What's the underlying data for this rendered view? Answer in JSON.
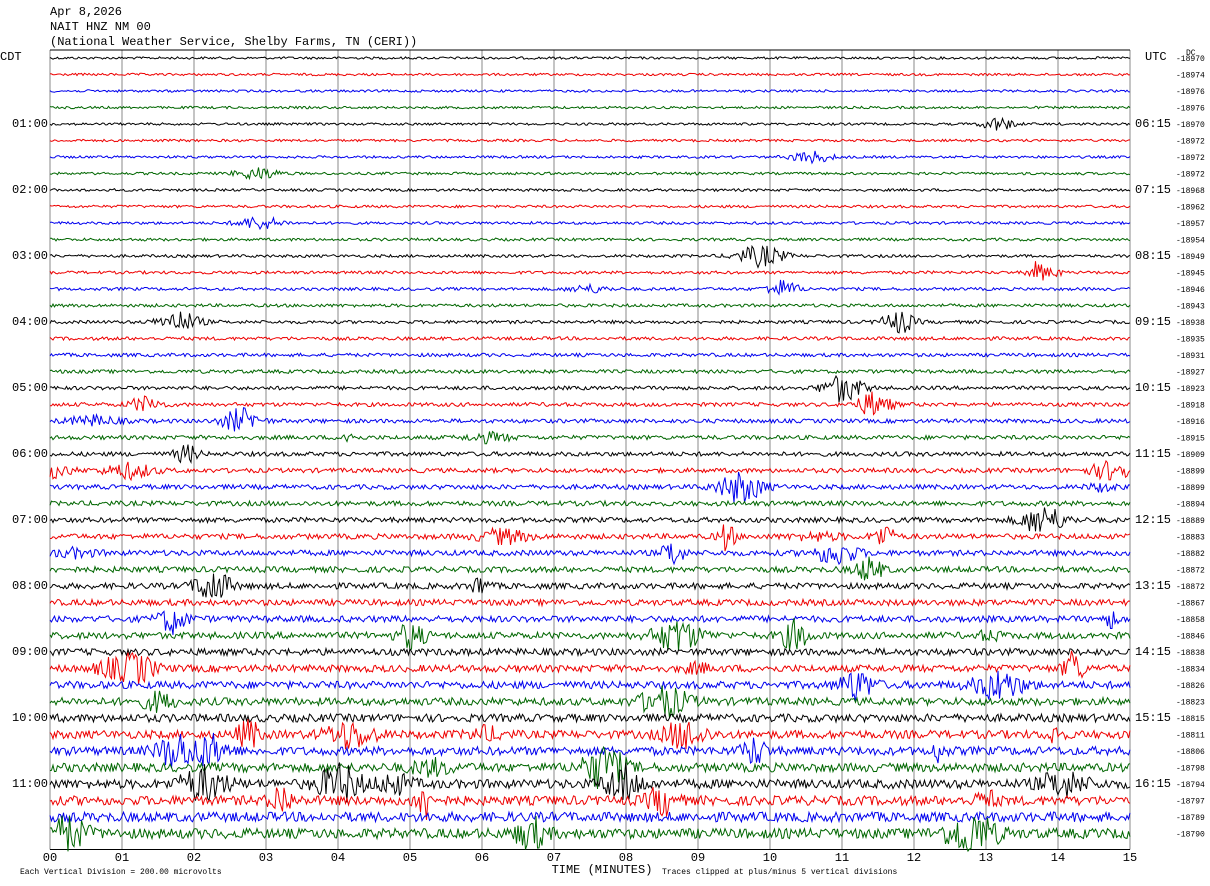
{
  "header": {
    "date": "Apr 8,2026",
    "station": "NAIT HNZ NM 00",
    "source": "(National Weather Service, Shelby Farms, TN (CERI))"
  },
  "left_axis": {
    "title": "CDT",
    "labels": [
      "01:00",
      "02:00",
      "03:00",
      "04:00",
      "05:00",
      "06:00",
      "07:00",
      "08:00",
      "09:00",
      "10:00",
      "11:00"
    ]
  },
  "right_axis": {
    "title": "UTC",
    "labels": [
      "06:15",
      "07:15",
      "08:15",
      "09:15",
      "10:15",
      "11:15",
      "12:15",
      "13:15",
      "14:15",
      "15:15",
      "16:15"
    ],
    "dc_title": "DC",
    "dc_offsets": [
      "-18970",
      "-18974",
      "-18976",
      "-18976",
      "-18970",
      "-18972",
      "-18972",
      "-18972",
      "-18968",
      "-18962",
      "-18957",
      "-18954",
      "-18949",
      "-18945",
      "-18946",
      "-18943",
      "-18938",
      "-18935",
      "-18931",
      "-18927",
      "-18923",
      "-18918",
      "-18916",
      "-18915",
      "-18909",
      "-18899",
      "-18899",
      "-18894",
      "-18889",
      "-18883",
      "-18882",
      "-18872",
      "-18872",
      "-18867",
      "-18858",
      "-18846",
      "-18838",
      "-18834",
      "-18826",
      "-18823",
      "-18815",
      "-18811",
      "-18806",
      "-18798",
      "-18794",
      "-18797",
      "-18789",
      "-18790"
    ]
  },
  "x_axis": {
    "title": "TIME (MINUTES)",
    "labels": [
      "00",
      "01",
      "02",
      "03",
      "04",
      "05",
      "06",
      "07",
      "08",
      "09",
      "10",
      "11",
      "12",
      "13",
      "14",
      "15"
    ]
  },
  "footer": {
    "scale": "Each Vertical Division =  200.00 microvolts",
    "clip": "Traces clipped at plus/minus 5 vertical divisions"
  }
}
